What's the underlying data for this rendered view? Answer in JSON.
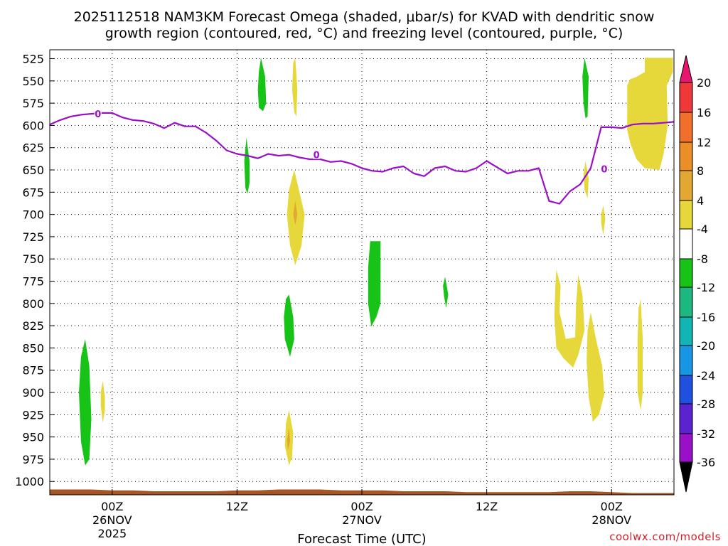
{
  "chart_data": {
    "type": "heatmap",
    "title_line1": "2025112518 NAM3KM Forecast Omega (shaded, μbar/s) for KVAD with dendritic snow",
    "title_line2": "growth region (contoured, red, °C) and freezing level (contoured, purple, °C)",
    "xlabel": "Forecast Time (UTC)",
    "credit": "coolwx.com/models",
    "x_hours_range": [
      -6,
      54
    ],
    "y_pressure_range": [
      515,
      1015
    ],
    "y_ticks": [
      "525",
      "550",
      "575",
      "600",
      "625",
      "650",
      "675",
      "700",
      "725",
      "750",
      "775",
      "800",
      "825",
      "850",
      "875",
      "900",
      "925",
      "950",
      "975",
      "1000"
    ],
    "x_ticks": [
      {
        "hour": 0,
        "label": "00Z",
        "line2": "26NOV",
        "line3": "2025"
      },
      {
        "hour": 12,
        "label": "12Z",
        "line2": "",
        "line3": ""
      },
      {
        "hour": 24,
        "label": "00Z",
        "line2": "27NOV",
        "line3": ""
      },
      {
        "hour": 36,
        "label": "12Z",
        "line2": "",
        "line3": ""
      },
      {
        "hour": 48,
        "label": "00Z",
        "line2": "28NOV",
        "line3": ""
      }
    ],
    "colorbar": {
      "labels": [
        "20",
        "16",
        "12",
        "8",
        "4",
        "-4",
        "-8",
        "-12",
        "-16",
        "-20",
        "-24",
        "-28",
        "-32",
        "-36"
      ],
      "colors": [
        "#e8166f",
        "#f0383b",
        "#f26e2b",
        "#ec8e27",
        "#e3a832",
        "#e6d83a",
        "#ffffff",
        "#18c318",
        "#1cb880",
        "#12b5b5",
        "#1896e6",
        "#2050e0",
        "#5a22d0",
        "#9a10c8",
        "#a8a8a8",
        "#000000"
      ]
    },
    "freezing_level": {
      "label": "0",
      "color": "#9a10c8",
      "x": [
        -6,
        -5,
        -4,
        -3,
        -2,
        -1,
        0,
        1,
        2,
        3,
        4,
        5,
        6,
        7,
        8,
        9,
        10,
        11,
        12,
        13,
        14,
        15,
        16,
        17,
        18,
        19,
        20,
        21,
        22,
        23,
        24,
        25,
        26,
        27,
        28,
        29,
        30,
        31,
        32,
        33,
        34,
        35,
        36,
        37,
        38,
        39,
        40,
        41,
        42,
        43,
        44,
        45,
        46,
        47,
        48,
        49,
        50,
        51,
        52,
        53,
        54
      ],
      "y": [
        599,
        594,
        590,
        588,
        587,
        586,
        586,
        591,
        594,
        595,
        598,
        603,
        597,
        601,
        601,
        608,
        617,
        628,
        632,
        634,
        637,
        632,
        634,
        633,
        636,
        638,
        638,
        641,
        640,
        643,
        648,
        651,
        652,
        648,
        646,
        654,
        657,
        648,
        646,
        651,
        652,
        648,
        640,
        647,
        654,
        651,
        651,
        648,
        685,
        688,
        674,
        666,
        648,
        602,
        602,
        603,
        599,
        598,
        598,
        597,
        596
      ]
    },
    "omega_regions": [
      {
        "fill": "#18c318",
        "points": [
          [
            -2.6,
            840
          ],
          [
            -2.2,
            870
          ],
          [
            -2.0,
            930
          ],
          [
            -2.2,
            975
          ],
          [
            -2.6,
            982
          ],
          [
            -3.0,
            955
          ],
          [
            -3.2,
            900
          ],
          [
            -3.0,
            860
          ]
        ]
      },
      {
        "fill": "#e6d83a",
        "points": [
          [
            -0.9,
            887
          ],
          [
            -0.7,
            905
          ],
          [
            -0.7,
            920
          ],
          [
            -0.9,
            934
          ],
          [
            -1.1,
            915
          ],
          [
            -1.1,
            900
          ]
        ]
      },
      {
        "fill": "#18c318",
        "points": [
          [
            14.3,
            524
          ],
          [
            14.7,
            545
          ],
          [
            14.8,
            575
          ],
          [
            14.5,
            584
          ],
          [
            14.1,
            580
          ],
          [
            14.0,
            560
          ],
          [
            14.1,
            540
          ]
        ]
      },
      {
        "fill": "#18c318",
        "points": [
          [
            12.9,
            614
          ],
          [
            13.2,
            640
          ],
          [
            13.2,
            665
          ],
          [
            13.0,
            677
          ],
          [
            12.8,
            670
          ],
          [
            12.7,
            640
          ]
        ]
      },
      {
        "fill": "#e6d83a",
        "points": [
          [
            17.6,
            524
          ],
          [
            17.8,
            560
          ],
          [
            17.7,
            590
          ],
          [
            17.5,
            585
          ],
          [
            17.3,
            560
          ],
          [
            17.4,
            530
          ]
        ]
      },
      {
        "fill": "#e6d83a",
        "points": [
          [
            17.5,
            650
          ],
          [
            18.0,
            675
          ],
          [
            18.5,
            700
          ],
          [
            18.2,
            735
          ],
          [
            17.6,
            757
          ],
          [
            17.1,
            735
          ],
          [
            16.8,
            700
          ],
          [
            17.0,
            672
          ]
        ]
      },
      {
        "fill": "#e3a832",
        "points": [
          [
            17.6,
            685
          ],
          [
            17.8,
            700
          ],
          [
            17.6,
            712
          ],
          [
            17.4,
            700
          ]
        ]
      },
      {
        "fill": "#18c318",
        "points": [
          [
            17.0,
            790
          ],
          [
            17.4,
            815
          ],
          [
            17.5,
            840
          ],
          [
            17.1,
            860
          ],
          [
            16.6,
            840
          ],
          [
            16.5,
            815
          ],
          [
            16.7,
            795
          ]
        ]
      },
      {
        "fill": "#e6d83a",
        "points": [
          [
            17.0,
            920
          ],
          [
            17.4,
            945
          ],
          [
            17.3,
            972
          ],
          [
            17.0,
            982
          ],
          [
            16.6,
            960
          ],
          [
            16.7,
            935
          ]
        ]
      },
      {
        "fill": "#e3a832",
        "points": [
          [
            17.0,
            940
          ],
          [
            17.1,
            955
          ],
          [
            16.9,
            965
          ],
          [
            16.8,
            953
          ]
        ]
      },
      {
        "fill": "#18c318",
        "points": [
          [
            24.8,
            730
          ],
          [
            25.8,
            730
          ],
          [
            25.8,
            800
          ],
          [
            25.4,
            815
          ],
          [
            24.9,
            826
          ],
          [
            24.6,
            800
          ],
          [
            24.6,
            760
          ]
        ]
      },
      {
        "fill": "#18c318",
        "points": [
          [
            32.0,
            770
          ],
          [
            32.3,
            790
          ],
          [
            32.1,
            805
          ],
          [
            31.9,
            792
          ],
          [
            31.8,
            780
          ]
        ]
      },
      {
        "fill": "#18c318",
        "points": [
          [
            45.4,
            524
          ],
          [
            45.8,
            545
          ],
          [
            45.7,
            590
          ],
          [
            45.5,
            592
          ],
          [
            45.3,
            575
          ],
          [
            45.2,
            545
          ]
        ]
      },
      {
        "fill": "#e6d83a",
        "points": [
          [
            45.5,
            640
          ],
          [
            45.8,
            660
          ],
          [
            45.7,
            682
          ],
          [
            45.4,
            672
          ],
          [
            45.3,
            655
          ]
        ]
      },
      {
        "fill": "#e6d83a",
        "points": [
          [
            47.2,
            690
          ],
          [
            47.4,
            705
          ],
          [
            47.2,
            723
          ],
          [
            47.0,
            710
          ],
          [
            47.0,
            700
          ]
        ]
      },
      {
        "fill": "#e6d83a",
        "points": [
          [
            42.7,
            762
          ],
          [
            43.1,
            780
          ],
          [
            43.0,
            810
          ],
          [
            43.6,
            840
          ],
          [
            44.5,
            838
          ],
          [
            44.6,
            800
          ],
          [
            44.8,
            768
          ],
          [
            45.2,
            790
          ],
          [
            45.4,
            830
          ],
          [
            44.8,
            858
          ],
          [
            44.3,
            872
          ],
          [
            43.4,
            862
          ],
          [
            42.7,
            850
          ],
          [
            42.5,
            815
          ],
          [
            42.6,
            780
          ]
        ]
      },
      {
        "fill": "#e6d83a",
        "points": [
          [
            46.0,
            810
          ],
          [
            46.5,
            840
          ],
          [
            47.1,
            870
          ],
          [
            47.3,
            902
          ],
          [
            46.8,
            925
          ],
          [
            46.2,
            933
          ],
          [
            45.8,
            905
          ],
          [
            45.6,
            865
          ],
          [
            45.7,
            830
          ]
        ]
      },
      {
        "fill": "#e6d83a",
        "points": [
          [
            50.8,
            795
          ],
          [
            51.0,
            840
          ],
          [
            51.0,
            900
          ],
          [
            50.8,
            920
          ],
          [
            50.5,
            900
          ],
          [
            50.5,
            840
          ],
          [
            50.6,
            805
          ]
        ]
      },
      {
        "fill": "#e6d83a",
        "points": [
          [
            51.2,
            524
          ],
          [
            53.9,
            524
          ],
          [
            53.9,
            540
          ],
          [
            53.3,
            555
          ],
          [
            53.4,
            600
          ],
          [
            53.0,
            632
          ],
          [
            52.6,
            650
          ],
          [
            51.2,
            648
          ],
          [
            50.4,
            638
          ],
          [
            49.8,
            620
          ],
          [
            49.5,
            605
          ],
          [
            49.5,
            555
          ],
          [
            49.8,
            548
          ],
          [
            50.3,
            546
          ],
          [
            51.2,
            540
          ]
        ]
      }
    ],
    "ground_terrain": {
      "fill": "#a65526",
      "bottom_pressure": 1015,
      "x": [
        -6,
        -4,
        -2,
        0,
        2,
        4,
        6,
        8,
        10,
        12,
        14,
        16,
        18,
        20,
        22,
        24,
        26,
        28,
        30,
        32,
        34,
        36,
        38,
        40,
        42,
        44,
        46,
        48,
        50,
        52,
        54
      ],
      "y": [
        1009,
        1009,
        1009,
        1010,
        1010,
        1011,
        1011,
        1011,
        1011,
        1010,
        1010,
        1009,
        1009,
        1009,
        1010,
        1010,
        1010,
        1011,
        1011,
        1011,
        1012,
        1012,
        1012,
        1012,
        1012,
        1011,
        1011,
        1012,
        1013,
        1013,
        1013
      ]
    }
  }
}
